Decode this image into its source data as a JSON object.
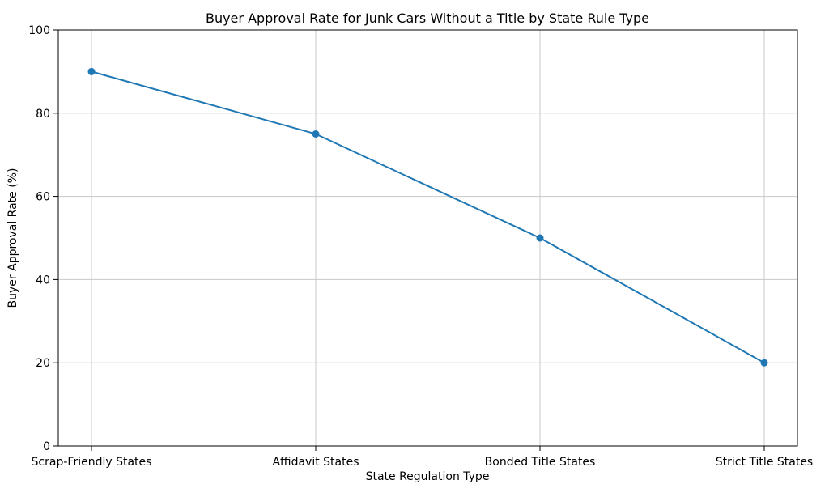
{
  "chart_data": {
    "type": "line",
    "title": "Buyer Approval Rate for Junk Cars Without a Title by State Rule Type",
    "xlabel": "State Regulation Type",
    "ylabel": "Buyer Approval Rate (%)",
    "categories": [
      "Scrap-Friendly States",
      "Affidavit States",
      "Bonded Title States",
      "Strict Title States"
    ],
    "series": [
      {
        "name": "Buyer Approval Rate",
        "values": [
          90,
          75,
          50,
          20
        ]
      }
    ],
    "ylim": [
      0,
      100
    ],
    "yticks": [
      0,
      20,
      40,
      60,
      80,
      100
    ],
    "grid": true,
    "legend_position": "none",
    "line_color": "#1f77b4",
    "marker": "circle",
    "grid_color": "#c8c8c8",
    "axis_color": "#000000",
    "background_color": "#ffffff"
  }
}
